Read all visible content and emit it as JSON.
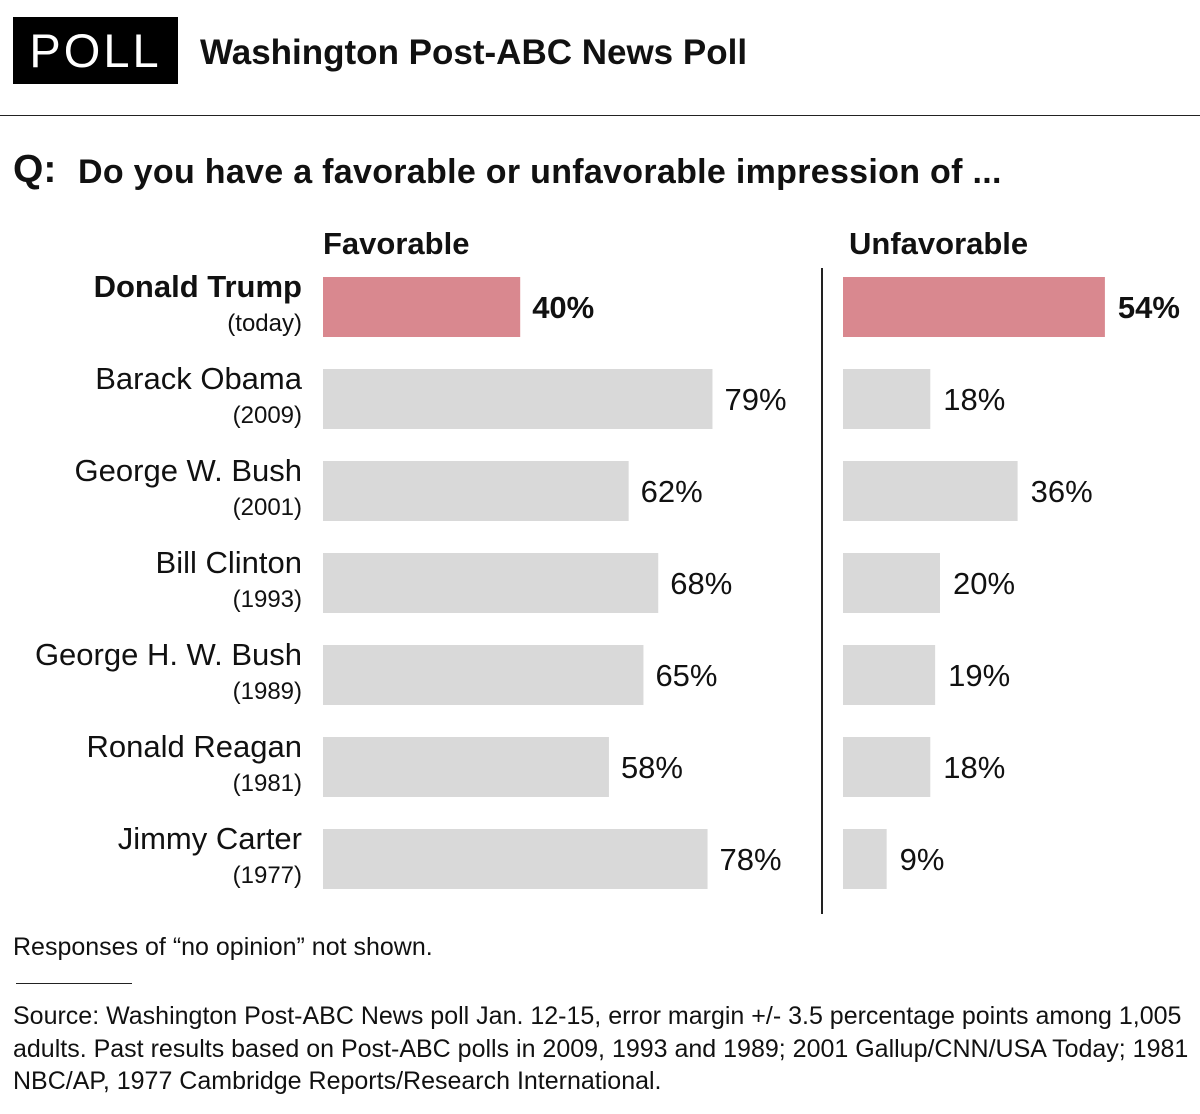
{
  "header": {
    "badge": "POLL",
    "title": "Washington Post-ABC News Poll"
  },
  "question": {
    "label": "Q:",
    "text": "Do you have a favorable or unfavorable impression of ..."
  },
  "colors": {
    "highlight": "#d9888f",
    "bar": "#d9d9d9",
    "text": "#111111",
    "divider": "#222222"
  },
  "chart_data": {
    "type": "bar",
    "orientation": "horizontal",
    "title": "Do you have a favorable or unfavorable impression of ...",
    "categories": [
      {
        "name": "Donald Trump",
        "period": "(today)",
        "highlight": true
      },
      {
        "name": "Barack Obama",
        "period": "(2009)",
        "highlight": false
      },
      {
        "name": "George W. Bush",
        "period": "(2001)",
        "highlight": false
      },
      {
        "name": "Bill Clinton",
        "period": "(1993)",
        "highlight": false
      },
      {
        "name": "George H. W. Bush",
        "period": "(1989)",
        "highlight": false
      },
      {
        "name": "Ronald Reagan",
        "period": "(1981)",
        "highlight": false
      },
      {
        "name": "Jimmy Carter",
        "period": "(1977)",
        "highlight": false
      }
    ],
    "series": [
      {
        "name": "Favorable",
        "values": [
          40,
          79,
          62,
          68,
          65,
          58,
          78
        ]
      },
      {
        "name": "Unfavorable",
        "values": [
          54,
          18,
          36,
          20,
          19,
          18,
          9
        ]
      }
    ],
    "value_suffix": "%",
    "xlim": [
      0,
      100
    ]
  },
  "footnote": "Responses of “no opinion” not shown.",
  "source": "Source: Washington Post-ABC News poll Jan. 12-15, error margin +/- 3.5 percentage points among 1,005 adults. Past results based on Post-ABC polls in 2009, 1993 and 1989; 2001 Gallup/CNN/USA Today; 1981 NBC/AP, 1977 Cambridge Reports/Research International."
}
